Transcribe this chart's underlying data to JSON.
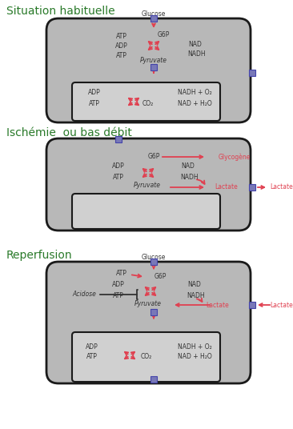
{
  "title1": "Situation habituelle",
  "title2": "Ischémie  ou bas débit",
  "title3": "Reperfusion",
  "bg_color": "#ffffff",
  "cell_color": "#b8b8b8",
  "cell_edge": "#1a1a1a",
  "box_color": "#d0d0d0",
  "arrow_color": "#e04050",
  "text_color": "#333333",
  "blue_box": "#7878b8",
  "title_color": "#2a7a2a"
}
